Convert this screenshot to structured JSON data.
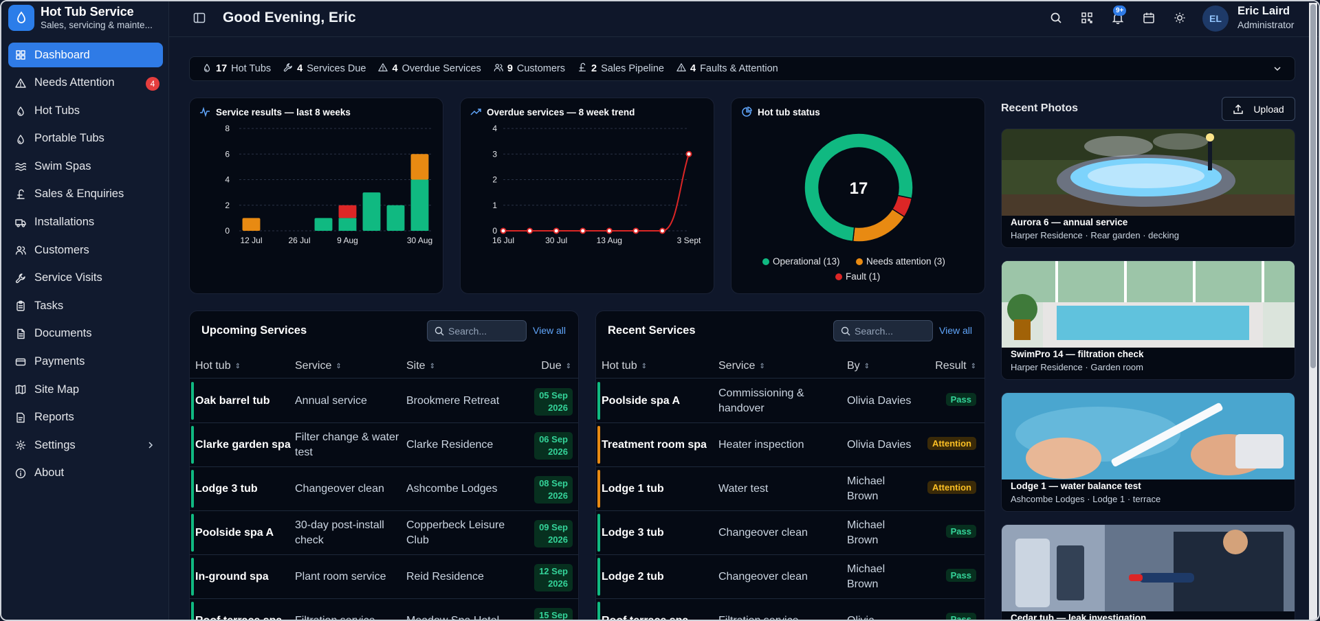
{
  "brand": {
    "title": "Hot Tub Service",
    "subtitle": "Sales, servicing & mainte..."
  },
  "nav": [
    {
      "label": "Dashboard",
      "icon": "grid-icon",
      "active": true
    },
    {
      "label": "Needs Attention",
      "icon": "warning-icon",
      "badge": "4"
    },
    {
      "label": "Hot Tubs",
      "icon": "tub-icon"
    },
    {
      "label": "Portable Tubs",
      "icon": "tub-icon"
    },
    {
      "label": "Swim Spas",
      "icon": "waves-icon"
    },
    {
      "label": "Sales & Enquiries",
      "icon": "pound-icon"
    },
    {
      "label": "Installations",
      "icon": "truck-icon"
    },
    {
      "label": "Customers",
      "icon": "users-icon"
    },
    {
      "label": "Service Visits",
      "icon": "wrench-icon"
    },
    {
      "label": "Tasks",
      "icon": "clipboard-icon"
    },
    {
      "label": "Documents",
      "icon": "document-icon"
    },
    {
      "label": "Payments",
      "icon": "card-icon"
    },
    {
      "label": "Site Map",
      "icon": "map-icon"
    },
    {
      "label": "Reports",
      "icon": "report-icon"
    },
    {
      "label": "Settings",
      "icon": "gear-icon",
      "chevron": true
    },
    {
      "label": "About",
      "icon": "info-icon"
    }
  ],
  "header": {
    "greeting": "Good Evening, Eric",
    "notif_badge": "9+",
    "avatar_initials": "EL",
    "user_name": "Eric Laird",
    "user_role": "Administrator"
  },
  "stats": [
    {
      "value": "17",
      "label": "Hot Tubs"
    },
    {
      "value": "4",
      "label": "Services Due"
    },
    {
      "value": "4",
      "label": "Overdue Services"
    },
    {
      "value": "9",
      "label": "Customers"
    },
    {
      "value": "2",
      "label": "Sales Pipeline"
    },
    {
      "value": "4",
      "label": "Faults & Attention"
    }
  ],
  "colors": {
    "accent": "#2f7be6",
    "pass": "#10b981",
    "attention": "#e88a12",
    "fault": "#dc2626"
  },
  "chart_data": [
    {
      "type": "bar",
      "title": "Service results — last 8 weeks",
      "categories": [
        "12 Jul",
        "19 Jul",
        "26 Jul",
        "2 Aug",
        "9 Aug",
        "16 Aug",
        "23 Aug",
        "30 Aug"
      ],
      "tick_labels": [
        "12 Jul",
        "26 Jul",
        "9 Aug",
        "30 Aug"
      ],
      "stacked": true,
      "series": [
        {
          "color": "#10b981",
          "values": [
            0,
            0,
            0,
            1,
            1,
            3,
            2,
            4
          ]
        },
        {
          "color": "#e88a12",
          "values": [
            1,
            0,
            0,
            0,
            0,
            0,
            0,
            2
          ]
        },
        {
          "color": "#dc2626",
          "values": [
            0,
            0,
            0,
            0,
            1,
            0,
            0,
            0
          ]
        }
      ],
      "yticks": [
        0,
        2,
        4,
        6,
        8
      ],
      "ylim": [
        0,
        8
      ],
      "grid": true
    },
    {
      "type": "line",
      "title": "Overdue services — 8 week trend",
      "x": [
        "16 Jul",
        "23 Jul",
        "30 Jul",
        "6 Aug",
        "13 Aug",
        "20 Aug",
        "27 Aug",
        "3 Sept"
      ],
      "tick_labels": [
        "16 Jul",
        "30 Jul",
        "13 Aug",
        "3 Sept"
      ],
      "series": [
        {
          "color": "#dc2626",
          "values": [
            0,
            0,
            0,
            0,
            0,
            0,
            0,
            3
          ]
        }
      ],
      "yticks": [
        0,
        1,
        2,
        3,
        4
      ],
      "ylim": [
        0,
        4
      ],
      "grid": true
    },
    {
      "type": "pie",
      "title": "Hot tub status",
      "center_label": "17",
      "slices": [
        {
          "label": "Operational (13)",
          "value": 13,
          "color": "#10b981"
        },
        {
          "label": "Needs attention (3)",
          "value": 3,
          "color": "#e88a12"
        },
        {
          "label": "Fault (1)",
          "value": 1,
          "color": "#dc2626"
        }
      ]
    }
  ],
  "upcoming": {
    "title": "Upcoming Services",
    "search_placeholder": "Search...",
    "view_all": "View all",
    "columns": [
      "Hot tub",
      "Service",
      "Site",
      "Due"
    ],
    "rows": [
      {
        "tub": "Oak barrel tub",
        "service": "Annual service",
        "site": "Brookmere Retreat",
        "due1": "05 Sep",
        "due2": "2026"
      },
      {
        "tub": "Clarke garden spa",
        "service": "Filter change & water test",
        "site": "Clarke Residence",
        "due1": "06 Sep",
        "due2": "2026"
      },
      {
        "tub": "Lodge 3 tub",
        "service": "Changeover clean",
        "site": "Ashcombe Lodges",
        "due1": "08 Sep",
        "due2": "2026"
      },
      {
        "tub": "Poolside spa A",
        "service": "30-day post-install check",
        "site": "Copperbeck Leisure Club",
        "due1": "09 Sep",
        "due2": "2026"
      },
      {
        "tub": "In-ground spa",
        "service": "Plant room service",
        "site": "Reid Residence",
        "due1": "12 Sep",
        "due2": "2026"
      },
      {
        "tub": "Roof terrace spa",
        "service": "Filtration service",
        "site": "Meadow Spa Hotel",
        "due1": "15 Sep",
        "due2": "2026"
      }
    ]
  },
  "recent": {
    "title": "Recent Services",
    "search_placeholder": "Search...",
    "view_all": "View all",
    "columns": [
      "Hot tub",
      "Service",
      "By",
      "Result"
    ],
    "rows": [
      {
        "tub": "Poolside spa A",
        "service": "Commissioning & handover",
        "by": "Olivia Davies",
        "result": "Pass"
      },
      {
        "tub": "Treatment room spa",
        "service": "Heater inspection",
        "by": "Olivia Davies",
        "result": "Attention"
      },
      {
        "tub": "Lodge 1 tub",
        "service": "Water test",
        "by": "Michael Brown",
        "result": "Attention"
      },
      {
        "tub": "Lodge 3 tub",
        "service": "Changeover clean",
        "by": "Michael Brown",
        "result": "Pass"
      },
      {
        "tub": "Lodge 2 tub",
        "service": "Changeover clean",
        "by": "Michael Brown",
        "result": "Pass"
      },
      {
        "tub": "Roof terrace spa",
        "service": "Filtration service",
        "by": "Olivia",
        "result": "Pass"
      }
    ]
  },
  "photos": {
    "title": "Recent Photos",
    "upload_label": "Upload",
    "items": [
      {
        "title": "Aurora 6 — annual service",
        "meta": "Harper Residence · Rear garden · decking"
      },
      {
        "title": "SwimPro 14 — filtration check",
        "meta": "Harper Residence · Garden room"
      },
      {
        "title": "Lodge 1 — water balance test",
        "meta": "Ashcombe Lodges · Lodge 1 · terrace"
      },
      {
        "title": "Cedar tub — leak investigation",
        "meta": ""
      }
    ]
  }
}
